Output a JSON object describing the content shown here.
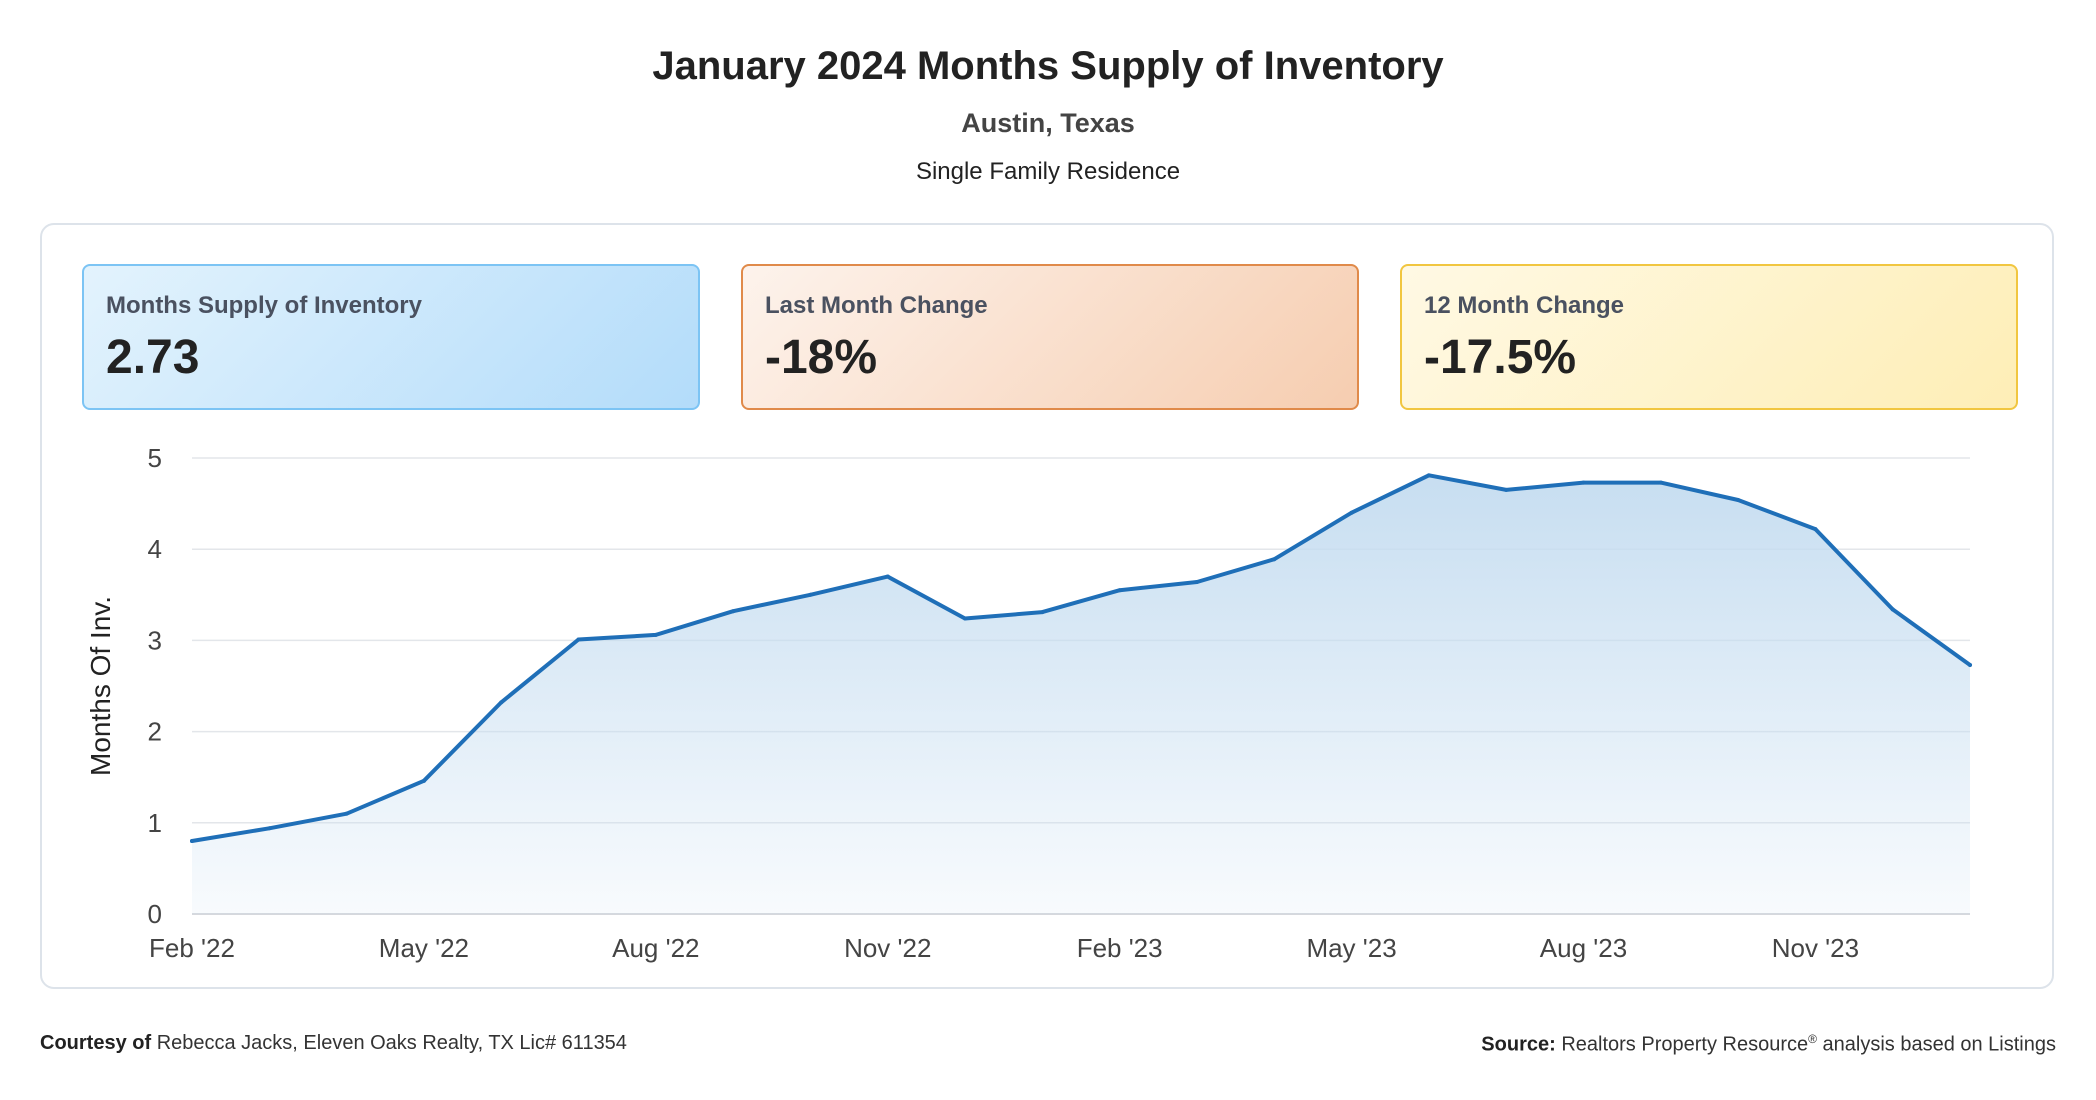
{
  "header": {
    "title": "January 2024 Months Supply of Inventory",
    "location": "Austin, Texas",
    "property_type": "Single Family Residence"
  },
  "cards": [
    {
      "label": "Months Supply of Inventory",
      "value": "2.73",
      "color": "#b3dcfa"
    },
    {
      "label": "Last Month Change",
      "value": "-18%",
      "color": "#f6cdb0"
    },
    {
      "label": "12 Month Change",
      "value": "-17.5%",
      "color": "#feeeb6"
    }
  ],
  "chart_data": {
    "type": "area",
    "title": "",
    "xlabel": "",
    "ylabel": "Months Of Inv.",
    "ylim": [
      0,
      5
    ],
    "y_ticks": [
      0,
      1,
      2,
      3,
      4,
      5
    ],
    "x": [
      "Feb '22",
      "Mar '22",
      "Apr '22",
      "May '22",
      "Jun '22",
      "Jul '22",
      "Aug '22",
      "Sep '22",
      "Oct '22",
      "Nov '22",
      "Dec '22",
      "Jan '23",
      "Feb '23",
      "Mar '23",
      "Apr '23",
      "May '23",
      "Jun '23",
      "Jul '23",
      "Aug '23",
      "Sep '23",
      "Oct '23",
      "Nov '23",
      "Dec '23",
      "Jan '24"
    ],
    "x_tick_labels": [
      "Feb '22",
      "May '22",
      "Aug '22",
      "Nov '22",
      "Feb '23",
      "May '23",
      "Aug '23",
      "Nov '23"
    ],
    "series": [
      {
        "name": "",
        "values": [
          0.8,
          0.94,
          1.1,
          1.46,
          2.32,
          3.01,
          3.06,
          3.32,
          3.5,
          3.7,
          3.24,
          3.31,
          3.55,
          3.64,
          3.89,
          4.4,
          4.81,
          4.65,
          4.73,
          4.73,
          4.54,
          4.22,
          3.34,
          2.73
        ],
        "color": "#1f6fb8"
      }
    ],
    "grid": true,
    "legend": "none"
  },
  "footer": {
    "courtesy_label": "Courtesy of",
    "courtesy_text": "Rebecca Jacks, Eleven Oaks Realty, TX Lic# 611354",
    "source_label": "Source:",
    "source_text": "Realtors Property Resource",
    "source_mark": "®",
    "source_suffix": "analysis based on Listings"
  }
}
